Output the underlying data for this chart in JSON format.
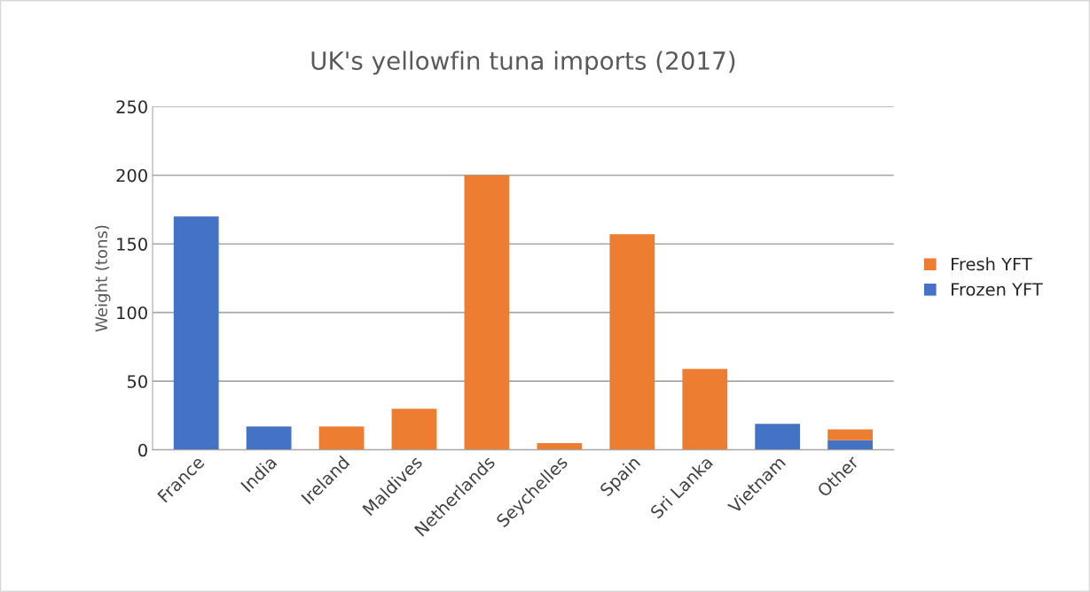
{
  "chart_data": {
    "type": "bar",
    "title": "UK's yellowfin tuna imports (2017)",
    "ylabel": "Weight (tons)",
    "categories": [
      "France",
      "India",
      "Ireland",
      "Maldives",
      "Netherlands",
      "Seychelles",
      "Spain",
      "Sri Lanka",
      "Vietnam",
      "Other"
    ],
    "stacked": true,
    "series": [
      {
        "name": "Frozen YFT",
        "color": "#4472c4",
        "values": [
          170,
          17,
          null,
          null,
          null,
          null,
          null,
          null,
          19,
          7
        ]
      },
      {
        "name": "Fresh YFT",
        "color": "#ed7d31",
        "values": [
          null,
          null,
          17,
          30,
          200,
          5,
          157,
          59,
          null,
          8
        ]
      }
    ],
    "ylim": [
      0,
      250
    ],
    "yticks": [
      0,
      50,
      100,
      150,
      200,
      250
    ],
    "grid": "y",
    "legend": "right"
  }
}
